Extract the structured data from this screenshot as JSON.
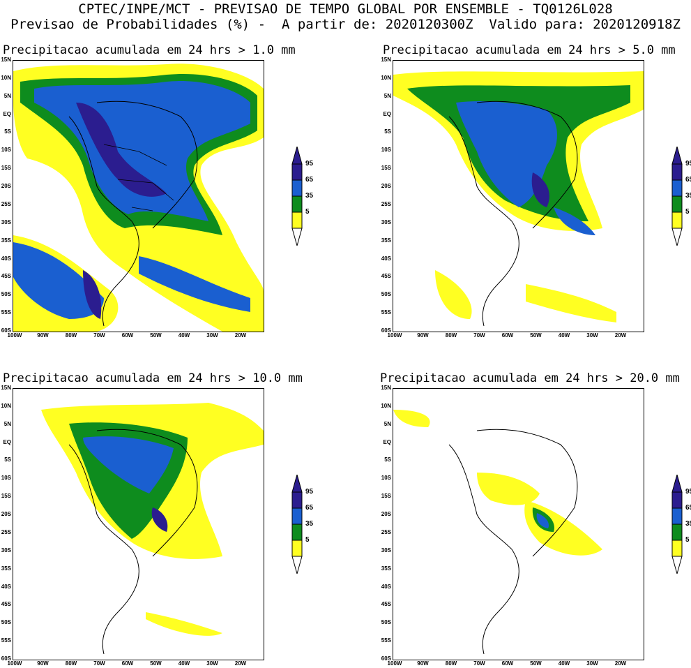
{
  "header": {
    "line1": "CPTEC/INPE/MCT - PREVISAO DE TEMPO GLOBAL POR ENSEMBLE - TQ0126L028",
    "line2": "Previsao de Probabilidades (%) -  A partir de: 2020120300Z  Valido para: 2020120918Z"
  },
  "panels": [
    {
      "title": "Precipitacao acumulada em 24 hrs > 1.0 mm"
    },
    {
      "title": "Precipitacao acumulada em 24 hrs > 5.0 mm"
    },
    {
      "title": "Precipitacao acumulada em 24 hrs > 10.0 mm"
    },
    {
      "title": "Precipitacao acumulada em 24 hrs > 20.0 mm"
    }
  ],
  "lat_labels": [
    "15N",
    "10N",
    "5N",
    "EQ",
    "5S",
    "10S",
    "15S",
    "20S",
    "25S",
    "30S",
    "35S",
    "40S",
    "45S",
    "50S",
    "55S",
    "60S"
  ],
  "lon_labels": [
    "100W",
    "90W",
    "80W",
    "70W",
    "60W",
    "50W",
    "40W",
    "30W",
    "20W"
  ],
  "legend": {
    "labels": [
      "95",
      "65",
      "35",
      "5"
    ],
    "colors": {
      "c95": "#2b1d8f",
      "c65": "#1a5fd0",
      "c35": "#0e8c1e",
      "c5": "#ffff22"
    }
  }
}
